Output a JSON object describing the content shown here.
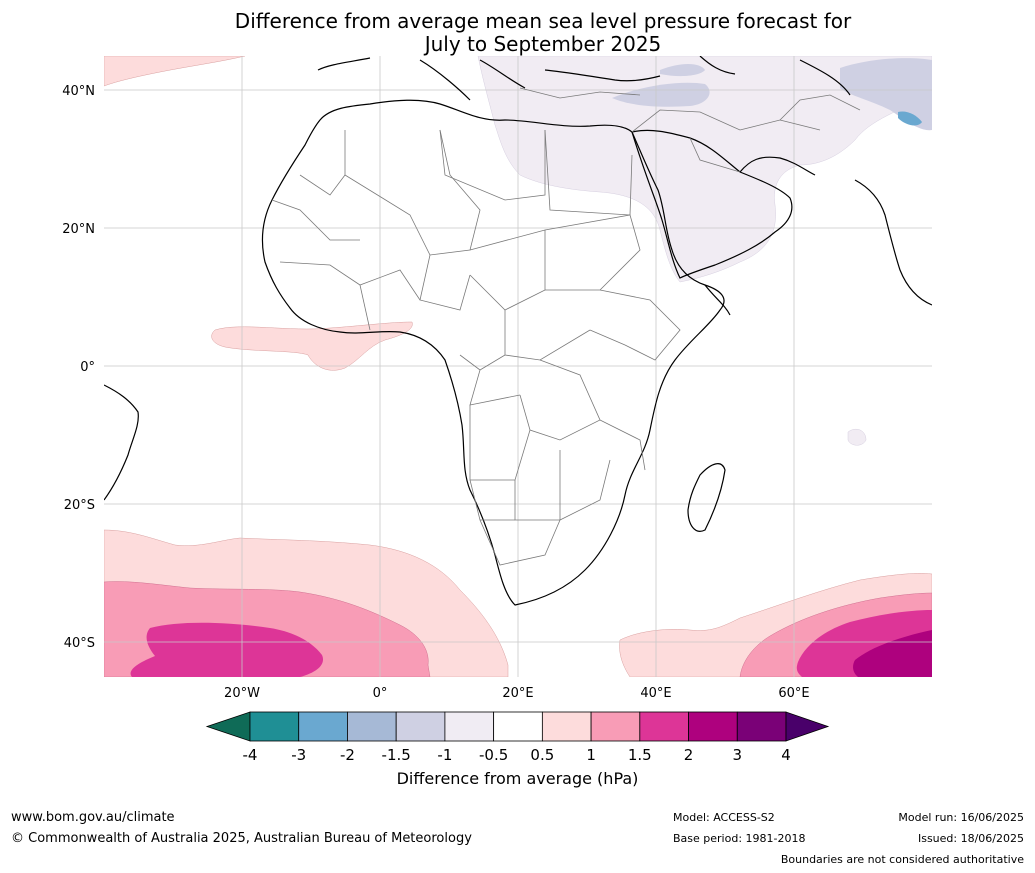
{
  "title": {
    "line1": "Difference from average mean sea level pressure forecast for",
    "line2": "July to September 2025"
  },
  "axes": {
    "lat_labels": [
      "40°N",
      "20°N",
      "0°",
      "20°S",
      "40°S"
    ],
    "lon_labels": [
      "20°W",
      "0°",
      "20°E",
      "40°E",
      "60°E"
    ],
    "lat_range": [
      -45,
      45
    ],
    "lon_range": [
      -40,
      80
    ],
    "grid": true
  },
  "colorbar": {
    "label": "Difference from average (hPa)",
    "ticks": [
      "-4",
      "-3",
      "-2",
      "-1.5",
      "-1",
      "-0.5",
      "0.5",
      "1",
      "1.5",
      "2",
      "3",
      "4"
    ],
    "colors": {
      "below_min": "#0f6b57",
      "bins": [
        "#1f8f95",
        "#6aa8d0",
        "#a6b9d6",
        "#cfd0e3",
        "#f0ecf3",
        "#ffffff",
        "#fddcdc",
        "#f89cb6",
        "#dd3597",
        "#ae017e",
        "#7a0177"
      ],
      "above_max": "#49006a"
    }
  },
  "map_regions": [
    {
      "name": "Southern Atlantic anomaly",
      "level": "0.5 to 1 hPa"
    },
    {
      "name": "Southern Atlantic core",
      "level": "2 to 3 hPa"
    },
    {
      "name": "Southern Indian Ocean core",
      "level": "above 3 hPa"
    },
    {
      "name": "Middle East / Sahara",
      "level": "-0.5 to -1 hPa"
    },
    {
      "name": "Equatorial Atlantic",
      "level": "0.5 to 1 hPa"
    }
  ],
  "footer": {
    "url": "www.bom.gov.au/climate",
    "copyright": "© Commonwealth of Australia 2025, Australian Bureau of Meteorology",
    "model": "Model: ACCESS-S2",
    "base_period": "Base period: 1981-2018",
    "model_run": "Model run: 16/06/2025",
    "issued": "Issued: 18/06/2025",
    "disclaimer": "Boundaries are not considered authoritative"
  }
}
